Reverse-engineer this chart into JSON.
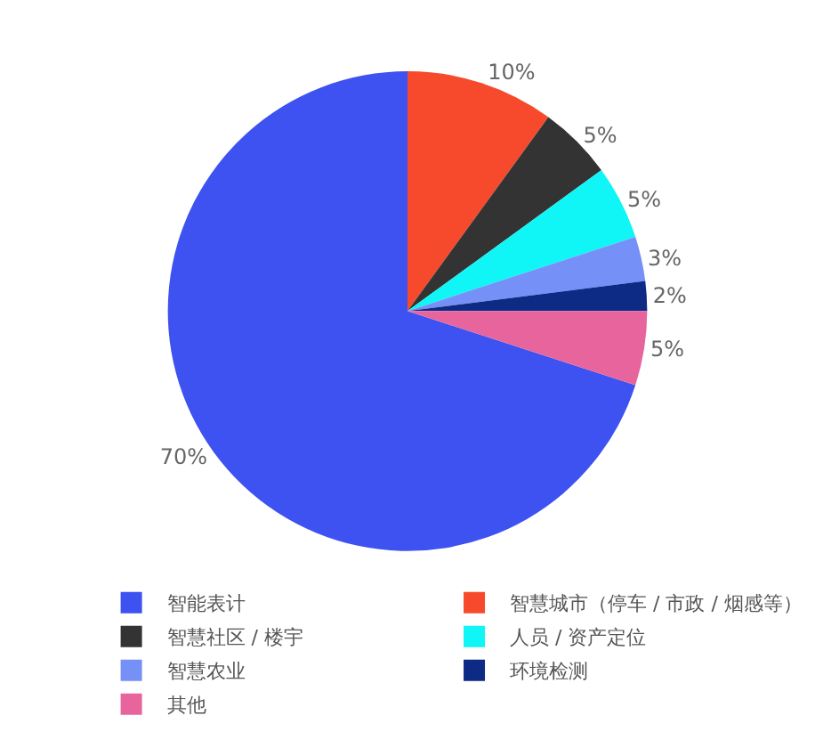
{
  "chart_data": {
    "type": "pie",
    "categories": [
      "智能表计",
      "智慧城市（停车 / 市政 / 烟感等）",
      "智慧社区 / 楼宇",
      "人员 / 资产定位",
      "智慧农业",
      "环境检测",
      "其他"
    ],
    "values": [
      70,
      10,
      5,
      5,
      3,
      2,
      5
    ],
    "value_labels": [
      "70%",
      "10%",
      "5%",
      "5%",
      "3%",
      "2%",
      "5%"
    ],
    "colors": [
      "#3d52f0",
      "#f74a2c",
      "#333333",
      "#10f5f5",
      "#7590f7",
      "#0d2a85",
      "#e8649c"
    ],
    "legend": "bottom"
  }
}
